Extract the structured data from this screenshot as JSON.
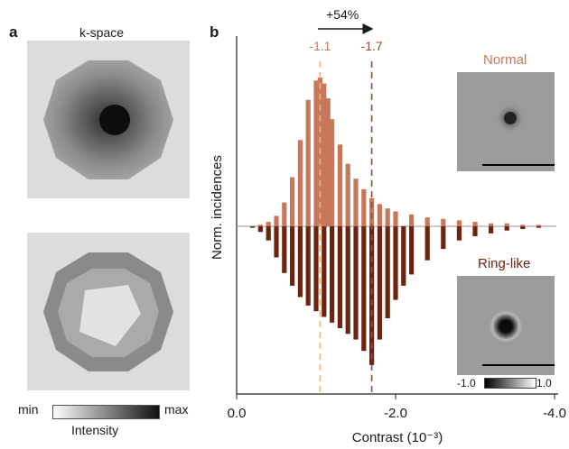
{
  "panel_a": {
    "letter": "a",
    "title": "k-space",
    "colorbar": {
      "min_label": "min",
      "max_label": "max",
      "caption": "Intensity"
    }
  },
  "panel_b": {
    "letter": "b",
    "shift_label": "+54%",
    "marker_normal_label": "-1.1",
    "marker_ring_label": "-1.7",
    "inset_normal_label": "Normal",
    "inset_ring_label": "Ring-like",
    "inset_colorbar_min": "-1.0",
    "inset_colorbar_max": "1.0",
    "colors": {
      "normal": "#c8775b",
      "ring": "#6a2410",
      "normal_line": "#e8b57a",
      "ring_line": "#9a4a2a"
    }
  },
  "chart_data": {
    "type": "bar",
    "xlabel": "Contrast (10⁻³)",
    "ylabel": "Norm. incidences",
    "xlim": [
      0.0,
      -4.0
    ],
    "x_ticks": [
      "0.0",
      "-2.0",
      "-4.0"
    ],
    "grid": false,
    "series": [
      {
        "name": "Normal",
        "direction": "up",
        "x": [
          -0.1,
          -0.2,
          -0.3,
          -0.4,
          -0.5,
          -0.6,
          -0.7,
          -0.8,
          -0.9,
          -1.0,
          -1.05,
          -1.1,
          -1.15,
          -1.2,
          -1.3,
          -1.4,
          -1.5,
          -1.6,
          -1.7,
          -1.8,
          -1.9,
          -2.0,
          -2.2,
          -2.4,
          -2.6,
          -2.8,
          -3.0,
          -3.2,
          -3.4,
          -3.6,
          -3.8,
          -4.0
        ],
        "values": [
          0.0,
          0.0,
          0.01,
          0.03,
          0.07,
          0.16,
          0.33,
          0.58,
          0.85,
          0.98,
          1.0,
          0.96,
          0.86,
          0.72,
          0.55,
          0.42,
          0.32,
          0.25,
          0.19,
          0.15,
          0.12,
          0.1,
          0.08,
          0.06,
          0.05,
          0.04,
          0.03,
          0.02,
          0.02,
          0.01,
          0.01,
          0.0
        ]
      },
      {
        "name": "Ring-like",
        "direction": "down",
        "x": [
          -0.1,
          -0.2,
          -0.3,
          -0.4,
          -0.5,
          -0.6,
          -0.7,
          -0.8,
          -0.9,
          -1.0,
          -1.1,
          -1.2,
          -1.3,
          -1.4,
          -1.5,
          -1.6,
          -1.7,
          -1.8,
          -1.9,
          -2.0,
          -2.1,
          -2.2,
          -2.4,
          -2.6,
          -2.8,
          -3.0,
          -3.2,
          -3.4,
          -3.6,
          -3.8,
          -4.0
        ],
        "values": [
          0.0,
          0.01,
          0.04,
          0.1,
          0.22,
          0.33,
          0.42,
          0.5,
          0.56,
          0.6,
          0.64,
          0.68,
          0.72,
          0.76,
          0.8,
          0.88,
          0.98,
          0.8,
          0.65,
          0.52,
          0.42,
          0.34,
          0.24,
          0.16,
          0.1,
          0.07,
          0.05,
          0.03,
          0.02,
          0.01,
          0.0
        ]
      }
    ],
    "markers": [
      {
        "x": -1.05,
        "label": "-1.1"
      },
      {
        "x": -1.7,
        "label": "-1.7"
      }
    ]
  }
}
